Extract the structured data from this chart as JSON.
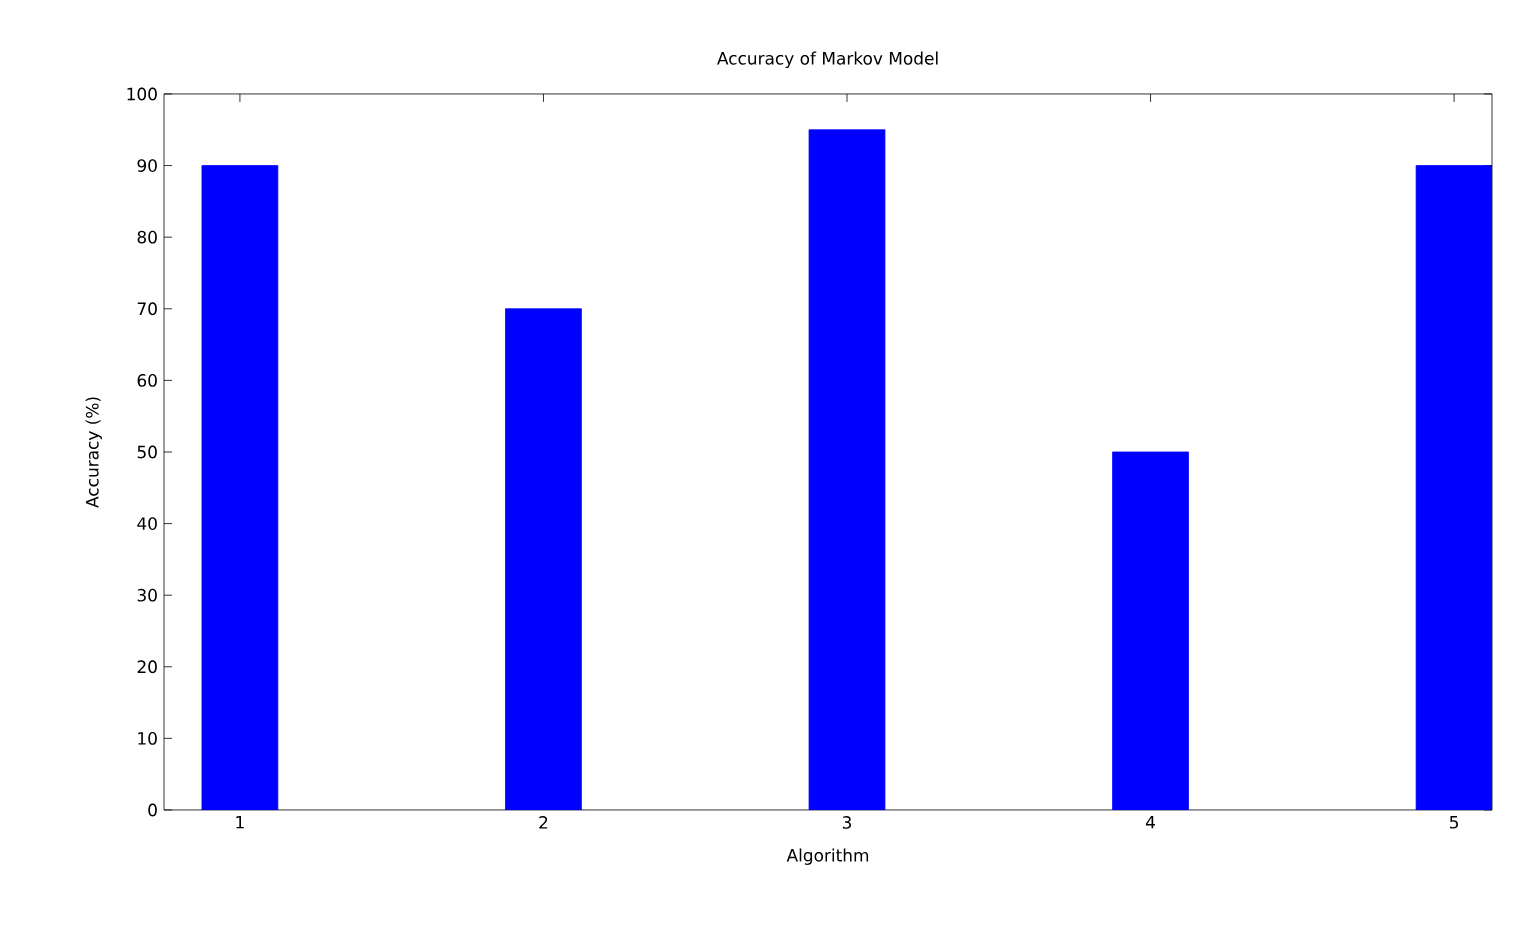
{
  "chart_data": {
    "type": "bar",
    "title": "Accuracy of Markov Model",
    "xlabel": "Algorithm",
    "ylabel": "Accuracy (%)",
    "x": [
      1,
      2,
      3,
      4,
      5
    ],
    "values": [
      90,
      70,
      95,
      50,
      90
    ],
    "color": "#0000ff",
    "xlim": [
      0.75,
      5.125
    ],
    "xticks": [
      1,
      2,
      3,
      4,
      5
    ],
    "ylim": [
      0,
      100
    ],
    "yticks": [
      0,
      10,
      20,
      30,
      40,
      50,
      60,
      70,
      80,
      90,
      100
    ]
  }
}
